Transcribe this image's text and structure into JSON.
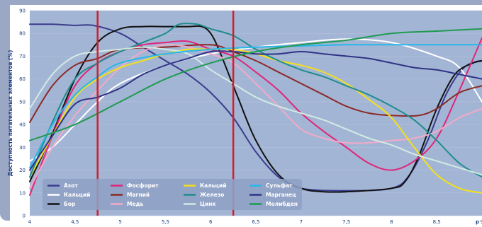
{
  "chart_data": {
    "type": "line",
    "xlabel": "p",
    "ylabel": "Доступность питательных элементов (%)",
    "xlim": [
      4,
      9
    ],
    "ylim": [
      0,
      90
    ],
    "x_ticks": [
      "4",
      "4,5",
      "5",
      "5,5",
      "6",
      "6,5",
      "7",
      "7,5",
      "8",
      "8,5",
      "9"
    ],
    "y_ticks": [
      "0",
      "10",
      "20",
      "30",
      "40",
      "50",
      "60",
      "70",
      "80",
      "90"
    ],
    "markers": [
      4.75,
      6.25
    ],
    "plot_bg": "#a3b5d5",
    "marker_color": "#d21f2c",
    "series": [
      {
        "name": "Азот",
        "color": "#3a3c8c",
        "points": [
          [
            4,
            84
          ],
          [
            4.25,
            84
          ],
          [
            4.5,
            83.5
          ],
          [
            4.7,
            83.5
          ],
          [
            5,
            80
          ],
          [
            5.25,
            74
          ],
          [
            5.5,
            68
          ],
          [
            5.75,
            62
          ],
          [
            6,
            54
          ],
          [
            6.25,
            43
          ],
          [
            6.5,
            28
          ],
          [
            6.75,
            17
          ],
          [
            7,
            12
          ],
          [
            7.5,
            11
          ],
          [
            8,
            12
          ],
          [
            8.2,
            18
          ],
          [
            8.4,
            33
          ],
          [
            8.6,
            53
          ],
          [
            8.8,
            65
          ],
          [
            9,
            68
          ]
        ]
      },
      {
        "name": "Кальций",
        "color": "#ffffff",
        "points": [
          [
            4,
            24
          ],
          [
            4.25,
            30
          ],
          [
            4.5,
            40
          ],
          [
            4.75,
            50
          ],
          [
            5,
            58
          ],
          [
            5.5,
            66
          ],
          [
            6,
            71
          ],
          [
            6.5,
            74
          ],
          [
            7,
            76
          ],
          [
            7.5,
            77.5
          ],
          [
            8,
            76
          ],
          [
            8.5,
            70
          ],
          [
            8.75,
            65
          ],
          [
            9,
            50
          ]
        ]
      },
      {
        "name": "Бор",
        "color": "#111111",
        "points": [
          [
            4,
            15
          ],
          [
            4.25,
            36
          ],
          [
            4.5,
            60
          ],
          [
            4.75,
            76
          ],
          [
            5,
            82
          ],
          [
            5.25,
            83
          ],
          [
            5.5,
            83
          ],
          [
            5.75,
            83
          ],
          [
            5.9,
            83
          ],
          [
            6,
            80
          ],
          [
            6.1,
            72
          ],
          [
            6.3,
            52
          ],
          [
            6.5,
            33
          ],
          [
            6.75,
            18
          ],
          [
            7,
            12
          ],
          [
            7.25,
            10.5
          ],
          [
            7.5,
            10.5
          ],
          [
            8,
            12
          ],
          [
            8.15,
            15
          ],
          [
            8.3,
            26
          ],
          [
            8.5,
            47
          ],
          [
            8.7,
            62
          ],
          [
            8.9,
            67
          ],
          [
            9,
            68
          ]
        ]
      },
      {
        "name": "Фосфорит",
        "color": "#e0257a",
        "points": [
          [
            4,
            9
          ],
          [
            4.25,
            35
          ],
          [
            4.5,
            57
          ],
          [
            4.75,
            67
          ],
          [
            5,
            72
          ],
          [
            5.25,
            75
          ],
          [
            5.5,
            76
          ],
          [
            5.75,
            76.5
          ],
          [
            6,
            73
          ],
          [
            6.25,
            70
          ],
          [
            6.5,
            63
          ],
          [
            6.75,
            55
          ],
          [
            7,
            45
          ],
          [
            7.25,
            37
          ],
          [
            7.5,
            30
          ],
          [
            7.75,
            23
          ],
          [
            8,
            20
          ],
          [
            8.25,
            24
          ],
          [
            8.5,
            34
          ],
          [
            8.75,
            55
          ],
          [
            9,
            78
          ]
        ]
      },
      {
        "name": "Магний",
        "color": "#8b2a26",
        "points": [
          [
            4,
            41
          ],
          [
            4.25,
            57
          ],
          [
            4.5,
            66
          ],
          [
            4.75,
            69
          ],
          [
            5,
            73
          ],
          [
            5.5,
            74
          ],
          [
            6,
            75
          ],
          [
            6.25,
            72
          ],
          [
            6.5,
            68
          ],
          [
            6.75,
            63
          ],
          [
            7,
            58
          ],
          [
            7.25,
            53
          ],
          [
            7.5,
            48
          ],
          [
            7.75,
            45
          ],
          [
            8,
            44
          ],
          [
            8.3,
            44
          ],
          [
            8.5,
            47
          ],
          [
            8.75,
            54
          ],
          [
            9,
            57
          ]
        ]
      },
      {
        "name": "Медь",
        "color": "#f2aac8",
        "points": [
          [
            4,
            12
          ],
          [
            4.25,
            30
          ],
          [
            4.5,
            44
          ],
          [
            4.75,
            55
          ],
          [
            5,
            65
          ],
          [
            5.25,
            72
          ],
          [
            5.5,
            75
          ],
          [
            5.75,
            74
          ],
          [
            6,
            71
          ],
          [
            6.25,
            67
          ],
          [
            6.5,
            58
          ],
          [
            6.75,
            48
          ],
          [
            7,
            38
          ],
          [
            7.25,
            34
          ],
          [
            7.5,
            32
          ],
          [
            7.75,
            32
          ],
          [
            8,
            33
          ],
          [
            8.25,
            34
          ],
          [
            8.5,
            37
          ],
          [
            8.75,
            43
          ],
          [
            9,
            47
          ]
        ]
      },
      {
        "name": "Кальций",
        "color": "#f4e01a",
        "points": [
          [
            4,
            17
          ],
          [
            4.25,
            35
          ],
          [
            4.5,
            52
          ],
          [
            4.75,
            60
          ],
          [
            5,
            65
          ],
          [
            5.25,
            68
          ],
          [
            5.5,
            71
          ],
          [
            5.75,
            73
          ],
          [
            6,
            73
          ],
          [
            6.25,
            73
          ],
          [
            6.5,
            71
          ],
          [
            6.75,
            68
          ],
          [
            7,
            66
          ],
          [
            7.25,
            63
          ],
          [
            7.5,
            58
          ],
          [
            7.75,
            51
          ],
          [
            8,
            43
          ],
          [
            8.25,
            30
          ],
          [
            8.5,
            18
          ],
          [
            8.75,
            12
          ],
          [
            9,
            10
          ]
        ]
      },
      {
        "name": "Железо",
        "color": "#1f8d8c",
        "points": [
          [
            4,
            17
          ],
          [
            4.25,
            41
          ],
          [
            4.5,
            60
          ],
          [
            4.75,
            67
          ],
          [
            5,
            72
          ],
          [
            5.25,
            76
          ],
          [
            5.5,
            80
          ],
          [
            5.65,
            84
          ],
          [
            5.85,
            84
          ],
          [
            6,
            82
          ],
          [
            6.25,
            79
          ],
          [
            6.5,
            73
          ],
          [
            6.75,
            68
          ],
          [
            7,
            64
          ],
          [
            7.25,
            61
          ],
          [
            7.5,
            57
          ],
          [
            7.75,
            53
          ],
          [
            8,
            48
          ],
          [
            8.25,
            42
          ],
          [
            8.5,
            33
          ],
          [
            8.75,
            23
          ],
          [
            9,
            17
          ]
        ]
      },
      {
        "name": "Цинк",
        "color": "#d2ebe2",
        "points": [
          [
            4,
            47
          ],
          [
            4.25,
            62
          ],
          [
            4.5,
            70
          ],
          [
            4.75,
            72
          ],
          [
            5,
            73
          ],
          [
            5.25,
            74
          ],
          [
            5.5,
            73
          ],
          [
            5.75,
            71
          ],
          [
            6,
            64
          ],
          [
            6.25,
            58
          ],
          [
            6.5,
            52
          ],
          [
            6.75,
            48
          ],
          [
            7,
            45
          ],
          [
            7.25,
            42
          ],
          [
            7.5,
            38
          ],
          [
            7.75,
            34
          ],
          [
            8,
            31
          ],
          [
            8.25,
            27
          ],
          [
            8.5,
            24
          ],
          [
            8.75,
            21
          ],
          [
            9,
            18
          ]
        ]
      },
      {
        "name": "Сульфат",
        "color": "#27b7e8",
        "points": [
          [
            4,
            21
          ],
          [
            4.25,
            40
          ],
          [
            4.5,
            53
          ],
          [
            4.75,
            61
          ],
          [
            5,
            67
          ],
          [
            5.5,
            71
          ],
          [
            6,
            73
          ],
          [
            6.5,
            74
          ],
          [
            7,
            74.5
          ],
          [
            7.5,
            75
          ],
          [
            8,
            75
          ],
          [
            8.5,
            75
          ],
          [
            9,
            75
          ]
        ]
      },
      {
        "name": "Марганец",
        "color": "#2f3485",
        "points": [
          [
            4,
            20
          ],
          [
            4.25,
            35
          ],
          [
            4.5,
            49
          ],
          [
            4.75,
            52
          ],
          [
            5,
            56
          ],
          [
            5.25,
            62
          ],
          [
            5.5,
            66
          ],
          [
            5.75,
            69
          ],
          [
            6,
            72
          ],
          [
            6.25,
            72
          ],
          [
            6.5,
            71
          ],
          [
            6.75,
            71
          ],
          [
            7,
            72
          ],
          [
            7.25,
            71
          ],
          [
            7.5,
            70
          ],
          [
            7.75,
            69
          ],
          [
            8,
            67
          ],
          [
            8.25,
            65
          ],
          [
            8.5,
            64
          ],
          [
            8.75,
            62
          ],
          [
            9,
            60
          ]
        ]
      },
      {
        "name": "Молибден",
        "color": "#1f9a50",
        "points": [
          [
            4,
            33
          ],
          [
            4.5,
            40
          ],
          [
            5,
            50
          ],
          [
            5.5,
            60
          ],
          [
            6,
            67
          ],
          [
            6.5,
            72
          ],
          [
            7,
            75
          ],
          [
            7.5,
            77
          ],
          [
            8,
            80
          ],
          [
            8.5,
            81
          ],
          [
            9,
            82
          ]
        ]
      }
    ]
  }
}
